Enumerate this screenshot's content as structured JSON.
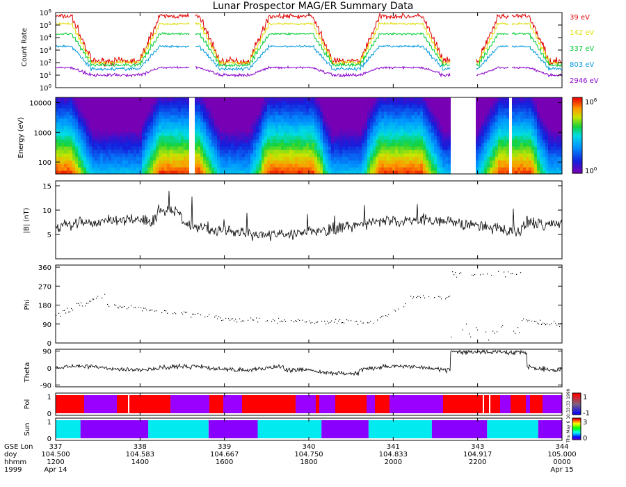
{
  "chart_data": {
    "type": "multi-panel time series",
    "title": "Lunar Prospector MAG/ER Summary Data",
    "panels": [
      {
        "id": "count_rate",
        "ylabel": "Count Rate",
        "scale": "log",
        "ylim": [
          1,
          1000000
        ],
        "yticks": [
          {
            "base": "10",
            "exp": "6"
          },
          {
            "base": "10",
            "exp": "5"
          },
          {
            "base": "10",
            "exp": "4"
          },
          {
            "base": "10",
            "exp": "3"
          },
          {
            "base": "10",
            "exp": "2"
          },
          {
            "base": "10",
            "exp": "1"
          },
          {
            "base": "10",
            "exp": "0"
          }
        ],
        "series": [
          {
            "name": "39 eV",
            "color": "#e00000",
            "level_log": [
              2.1,
              5.7
            ]
          },
          {
            "name": "142 eV",
            "color": "#dddd00",
            "level_log": [
              2.0,
              5.1
            ]
          },
          {
            "name": "337 eV",
            "color": "#00cc33",
            "level_log": [
              1.8,
              4.3
            ]
          },
          {
            "name": "803 eV",
            "color": "#0099dd",
            "level_log": [
              1.5,
              3.3
            ]
          },
          {
            "name": "2946 eV",
            "color": "#8800cc",
            "level_log": [
              1.0,
              1.6
            ]
          }
        ]
      },
      {
        "id": "spectrogram",
        "ylabel": "Energy (eV)",
        "scale": "log",
        "ylim": [
          40,
          15000
        ],
        "yticks": [
          "10000",
          "1000",
          "100"
        ],
        "colorbar": {
          "min": {
            "base": "10",
            "exp": "0"
          },
          "max": {
            "base": "10",
            "exp": "6"
          }
        }
      },
      {
        "id": "b_magnitude",
        "ylabel": "|B| (nT)",
        "ylim": [
          0,
          16
        ],
        "yticks": [
          "15",
          "10",
          "5"
        ]
      },
      {
        "id": "phi",
        "ylabel": "Phi",
        "ylim": [
          0,
          370
        ],
        "yticks": [
          "360",
          "270",
          "180",
          "90",
          "0"
        ]
      },
      {
        "id": "theta",
        "ylabel": "Theta",
        "ylim": [
          -100,
          100
        ],
        "yticks": [
          "90",
          "0",
          "-90"
        ]
      },
      {
        "id": "pol",
        "ylabel": "Pol",
        "yticks": [
          "1",
          "0"
        ],
        "colorbar": {
          "max": "1",
          "min": "-1"
        },
        "states": [
          "1",
          "-1"
        ]
      },
      {
        "id": "sun",
        "ylabel": "Sun",
        "yticks": [
          "1",
          "0"
        ],
        "colorbar": {
          "max": "3",
          "min": "0"
        },
        "segments": [
          {
            "state": "sunlit",
            "start": 0.0,
            "end": 0.049
          },
          {
            "state": "shadow",
            "start": 0.049,
            "end": 0.183
          },
          {
            "state": "sunlit",
            "start": 0.183,
            "end": 0.302
          },
          {
            "state": "shadow",
            "start": 0.302,
            "end": 0.399
          },
          {
            "state": "sunlit",
            "start": 0.399,
            "end": 0.525
          },
          {
            "state": "shadow",
            "start": 0.525,
            "end": 0.618
          },
          {
            "state": "sunlit",
            "start": 0.618,
            "end": 0.743
          },
          {
            "state": "shadow",
            "start": 0.743,
            "end": 0.852
          },
          {
            "state": "sunlit",
            "start": 0.852,
            "end": 0.953
          },
          {
            "state": "shadow",
            "start": 0.953,
            "end": 1.0
          }
        ]
      }
    ],
    "x_axis": {
      "row_labels": [
        "GSE Lon",
        "doy",
        "hhmm",
        "1999"
      ],
      "ticks": [
        {
          "frac": 0.0,
          "lon": "337",
          "doy": "104.500",
          "hhmm": "1200",
          "date": "Apr 14"
        },
        {
          "frac": 0.1667,
          "lon": "338",
          "doy": "104.583",
          "hhmm": "1400",
          "date": ""
        },
        {
          "frac": 0.3333,
          "lon": "339",
          "doy": "104.667",
          "hhmm": "1600",
          "date": ""
        },
        {
          "frac": 0.5,
          "lon": "340",
          "doy": "104.750",
          "hhmm": "1800",
          "date": ""
        },
        {
          "frac": 0.6667,
          "lon": "341",
          "doy": "104.833",
          "hhmm": "2000",
          "date": ""
        },
        {
          "frac": 0.8333,
          "lon": "343",
          "doy": "104.917",
          "hhmm": "2200",
          "date": ""
        },
        {
          "frac": 1.0,
          "lon": "344",
          "doy": "105.000",
          "hhmm": "0000",
          "date": "Apr 15"
        }
      ]
    },
    "data_gaps": [
      [
        0.265,
        0.275
      ],
      [
        0.78,
        0.83
      ],
      [
        0.895,
        0.9
      ]
    ],
    "footnote": "Thu May 6 10:33:33 1999"
  }
}
